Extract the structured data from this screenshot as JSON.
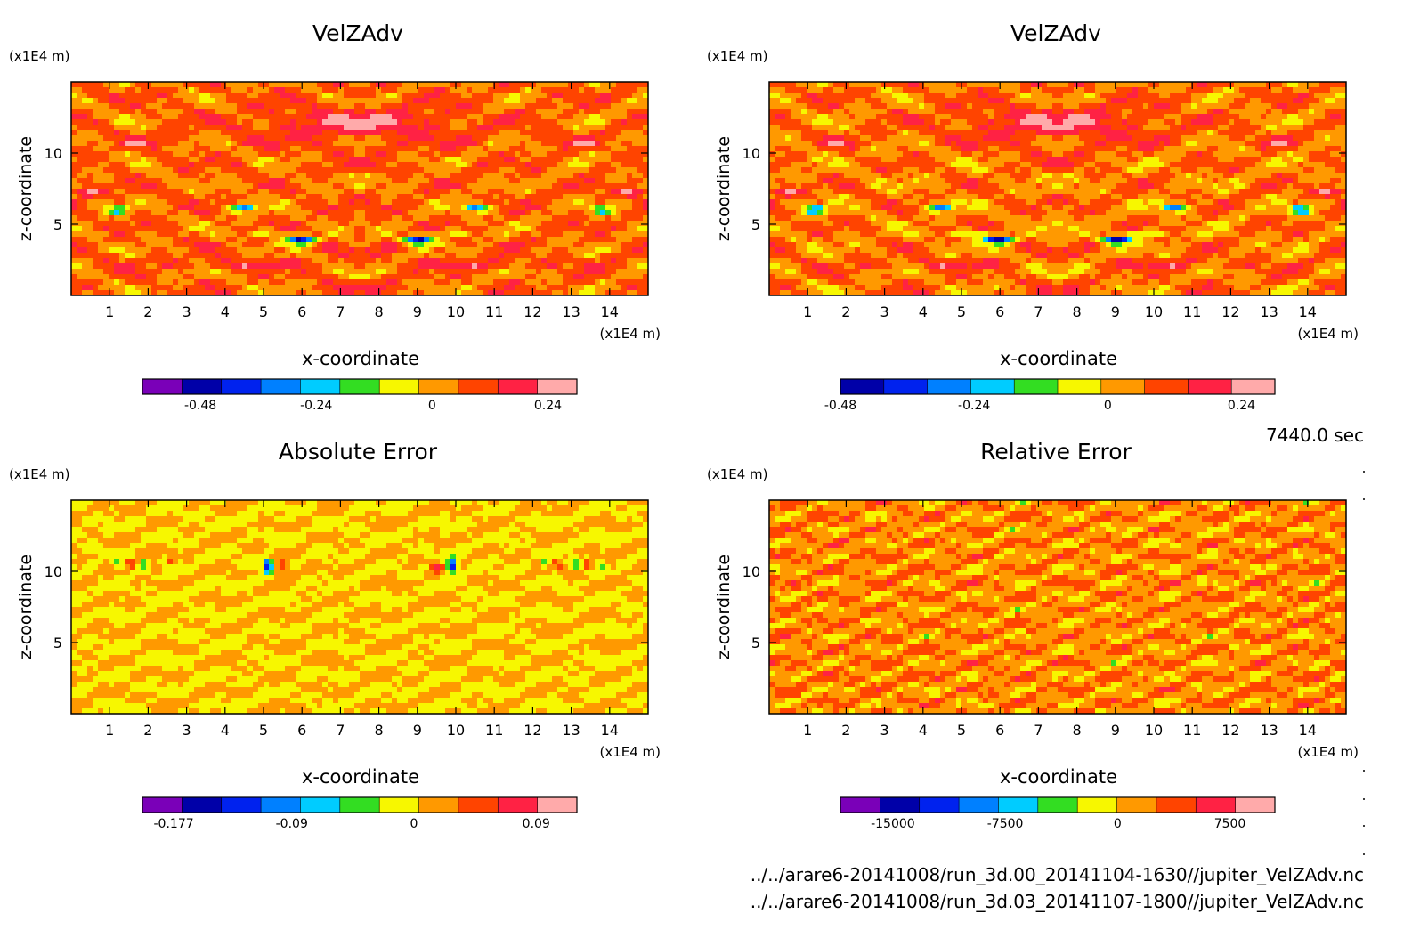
{
  "time_label": "7440.0 sec",
  "files": [
    "../../arare6-20141008/run_3d.00_20141104-1630//jupiter_VelZAdv.nc",
    "../../arare6-20141008/run_3d.03_20141107-1800//jupiter_VelZAdv.nc"
  ],
  "chart_data": [
    {
      "type": "heatmap",
      "title": "VelZAdv",
      "xlabel": "x-coordinate",
      "ylabel": "z-coordinate",
      "x_unit": "(x1E4 m)",
      "y_unit": "(x1E4 m)",
      "x_ticks": [
        1,
        2,
        3,
        4,
        5,
        6,
        7,
        8,
        9,
        10,
        11,
        12,
        13,
        14
      ],
      "y_ticks": [
        5,
        10
      ],
      "xlim": [
        0,
        15
      ],
      "ylim": [
        0,
        15
      ],
      "colorbar": {
        "colors": [
          "#7a00b8",
          "#0000a8",
          "#0022ee",
          "#0080ff",
          "#00ccff",
          "#33dd22",
          "#f7f700",
          "#ff9900",
          "#ff4400",
          "#ff2244",
          "#ffaaaa"
        ],
        "tick_labels": [
          "-0.48",
          "-0.24",
          "0",
          "0.24"
        ],
        "tick_values": [
          -0.48,
          -0.24,
          0,
          0.24
        ],
        "range": [
          -0.6,
          0.3
        ]
      },
      "field": "velzadv"
    },
    {
      "type": "heatmap",
      "title": "VelZAdv",
      "xlabel": "x-coordinate",
      "ylabel": "z-coordinate",
      "x_unit": "(x1E4 m)",
      "y_unit": "(x1E4 m)",
      "x_ticks": [
        1,
        2,
        3,
        4,
        5,
        6,
        7,
        8,
        9,
        10,
        11,
        12,
        13,
        14
      ],
      "y_ticks": [
        5,
        10
      ],
      "xlim": [
        0,
        15
      ],
      "ylim": [
        0,
        15
      ],
      "colorbar": {
        "colors": [
          "#0000a8",
          "#0022ee",
          "#0080ff",
          "#00ccff",
          "#33dd22",
          "#f7f700",
          "#ff9900",
          "#ff4400",
          "#ff2244",
          "#ffaaaa"
        ],
        "tick_labels": [
          "-0.48",
          "-0.24",
          "0",
          "0.24"
        ],
        "tick_values": [
          -0.48,
          -0.24,
          0,
          0.24
        ],
        "range": [
          -0.48,
          0.3
        ]
      },
      "field": "velzadv"
    },
    {
      "type": "heatmap",
      "title": "Absolute Error",
      "xlabel": "x-coordinate",
      "ylabel": "z-coordinate",
      "x_unit": "(x1E4 m)",
      "y_unit": "(x1E4 m)",
      "x_ticks": [
        1,
        2,
        3,
        4,
        5,
        6,
        7,
        8,
        9,
        10,
        11,
        12,
        13,
        14
      ],
      "y_ticks": [
        5,
        10
      ],
      "xlim": [
        0,
        15
      ],
      "ylim": [
        0,
        15
      ],
      "colorbar": {
        "colors": [
          "#7a00b8",
          "#0000a8",
          "#0022ee",
          "#0080ff",
          "#00ccff",
          "#33dd22",
          "#f7f700",
          "#ff9900",
          "#ff4400",
          "#ff2244",
          "#ffaaaa"
        ],
        "tick_labels": [
          "-0.177",
          "-0.09",
          "0",
          "0.09"
        ],
        "tick_values": [
          -0.177,
          -0.09,
          0,
          0.09
        ],
        "range": [
          -0.2,
          0.12
        ]
      },
      "field": "abserr"
    },
    {
      "type": "heatmap",
      "title": "Relative Error",
      "xlabel": "x-coordinate",
      "ylabel": "z-coordinate",
      "x_unit": "(x1E4 m)",
      "y_unit": "(x1E4 m)",
      "x_ticks": [
        1,
        2,
        3,
        4,
        5,
        6,
        7,
        8,
        9,
        10,
        11,
        12,
        13,
        14
      ],
      "y_ticks": [
        5,
        10
      ],
      "xlim": [
        0,
        15
      ],
      "ylim": [
        0,
        15
      ],
      "colorbar": {
        "colors": [
          "#7a00b8",
          "#0000a8",
          "#0022ee",
          "#0080ff",
          "#00ccff",
          "#33dd22",
          "#f7f700",
          "#ff9900",
          "#ff4400",
          "#ff2244",
          "#ffaaaa"
        ],
        "tick_labels": [
          "-15000",
          "-7500",
          "0",
          "7500"
        ],
        "tick_values": [
          -15000,
          -7500,
          0,
          7500
        ],
        "range": [
          -18500,
          10500
        ]
      },
      "field": "relerr"
    }
  ]
}
